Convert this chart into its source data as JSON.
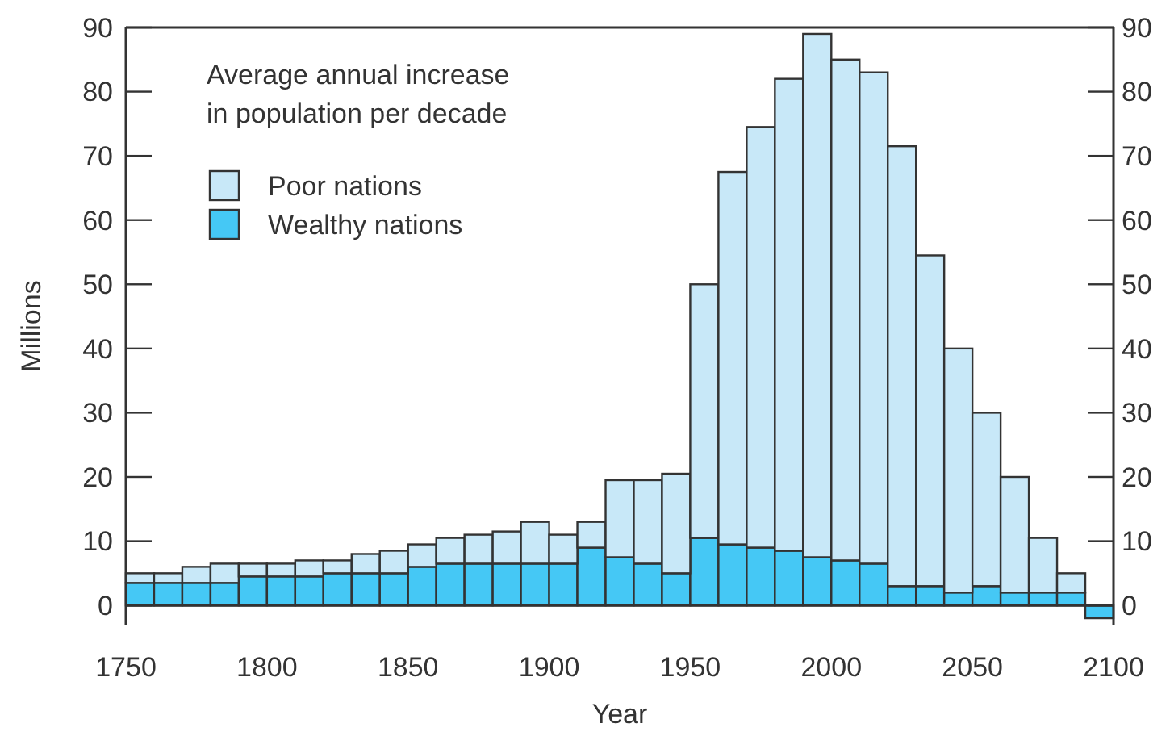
{
  "chart_data": {
    "type": "bar",
    "xlabel": "Year",
    "ylabel": "Millions",
    "legend_title": "Average annual increase\nin population per decade",
    "x": [
      1755,
      1765,
      1775,
      1785,
      1795,
      1805,
      1815,
      1825,
      1835,
      1845,
      1855,
      1865,
      1875,
      1885,
      1895,
      1905,
      1915,
      1925,
      1935,
      1945,
      1955,
      1965,
      1975,
      1985,
      1995,
      2005,
      2015,
      2025,
      2035,
      2045,
      2055,
      2065,
      2075,
      2085,
      2095
    ],
    "stacked": true,
    "series": [
      {
        "name": "Wealthy nations",
        "color": "#45c8f5",
        "values": [
          3.5,
          3.5,
          3.5,
          3.5,
          4.5,
          4.5,
          4.5,
          5,
          5,
          5,
          6,
          6.5,
          6.5,
          6.5,
          6.5,
          6.5,
          9,
          7.5,
          6.5,
          5,
          10.5,
          9.5,
          9,
          8.5,
          7.5,
          7,
          6.5,
          3,
          3,
          2,
          3,
          2,
          2,
          2,
          -2
        ]
      },
      {
        "name": "Poor nations",
        "color": "#c8e8f8",
        "values": [
          1.5,
          1.5,
          2.5,
          3,
          2,
          2,
          2.5,
          2,
          3,
          3.5,
          3.5,
          4,
          4.5,
          5,
          6.5,
          4.5,
          4,
          12,
          13,
          15.5,
          39.5,
          58,
          65.5,
          73.5,
          81.5,
          78,
          76.5,
          68.5,
          51.5,
          38,
          27,
          18,
          8.5,
          3,
          0
        ]
      }
    ],
    "xlim": [
      1750,
      2100
    ],
    "xticks": [
      1750,
      1800,
      1850,
      1900,
      1950,
      2000,
      2050,
      2100
    ],
    "ylim": [
      -3,
      90
    ],
    "yticks": [
      0,
      10,
      20,
      30,
      40,
      50,
      60,
      70,
      80,
      90
    ],
    "y2lim": [
      -3,
      90
    ],
    "y2ticks": [
      0,
      10,
      20,
      30,
      40,
      50,
      60,
      70,
      80,
      90
    ],
    "legend": "top left"
  }
}
